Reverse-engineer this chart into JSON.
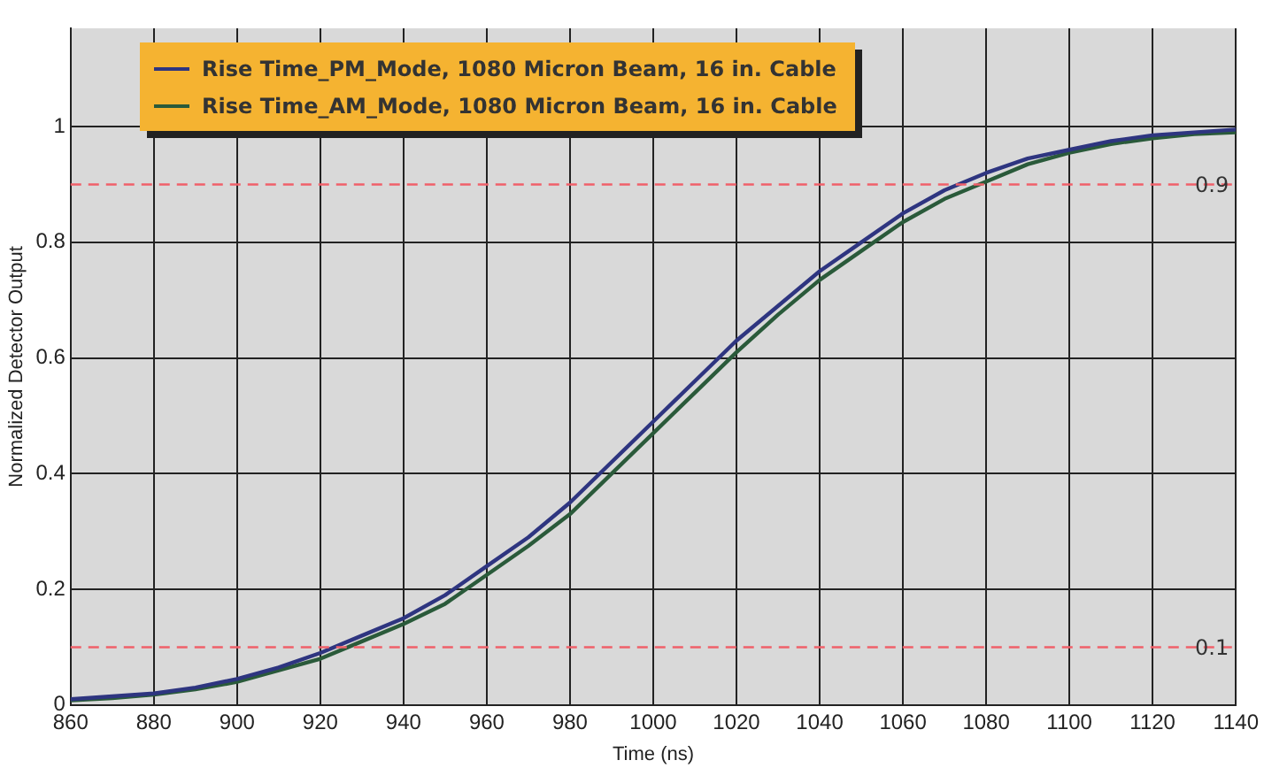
{
  "chart_data": {
    "type": "line",
    "xlabel": "Time (ns)",
    "ylabel": "Normalized Detector Output",
    "x": [
      860,
      870,
      880,
      890,
      900,
      910,
      920,
      930,
      940,
      950,
      960,
      970,
      980,
      990,
      1000,
      1010,
      1020,
      1030,
      1040,
      1050,
      1060,
      1070,
      1080,
      1090,
      1100,
      1110,
      1120,
      1130,
      1140
    ],
    "series": [
      {
        "name": "Rise Time_PM_Mode, 1080 Micron Beam, 16 in. Cable",
        "color": "#2e3580",
        "values": [
          0.01,
          0.015,
          0.02,
          0.03,
          0.045,
          0.065,
          0.09,
          0.12,
          0.15,
          0.19,
          0.24,
          0.29,
          0.35,
          0.42,
          0.49,
          0.56,
          0.63,
          0.69,
          0.75,
          0.8,
          0.85,
          0.89,
          0.92,
          0.945,
          0.96,
          0.975,
          0.985,
          0.99,
          0.995
        ]
      },
      {
        "name": "Rise Time_AM_Mode, 1080 Micron Beam, 16 in. Cable",
        "color": "#2a5a3a",
        "values": [
          0.008,
          0.012,
          0.018,
          0.027,
          0.04,
          0.06,
          0.08,
          0.11,
          0.14,
          0.175,
          0.225,
          0.275,
          0.33,
          0.4,
          0.47,
          0.54,
          0.61,
          0.675,
          0.735,
          0.785,
          0.835,
          0.875,
          0.905,
          0.935,
          0.955,
          0.97,
          0.98,
          0.987,
          0.99
        ]
      }
    ],
    "xlim": [
      860,
      1140
    ],
    "xticks": [
      860,
      880,
      900,
      920,
      940,
      960,
      980,
      1000,
      1020,
      1040,
      1060,
      1080,
      1100,
      1120,
      1140
    ],
    "ylim": [
      0,
      1.17
    ],
    "yticks": [
      0,
      0.2,
      0.4,
      0.6,
      0.8,
      1
    ],
    "ref_lines": [
      {
        "axis": "y",
        "value": 0.1,
        "label": "0.1",
        "color": "#f0606a",
        "line_style": "dashed"
      },
      {
        "axis": "y",
        "value": 0.9,
        "label": "0.9",
        "color": "#f0606a",
        "line_style": "dashed"
      }
    ],
    "grid": true,
    "legend": "top left",
    "marker": "none",
    "line_style": "solid"
  }
}
